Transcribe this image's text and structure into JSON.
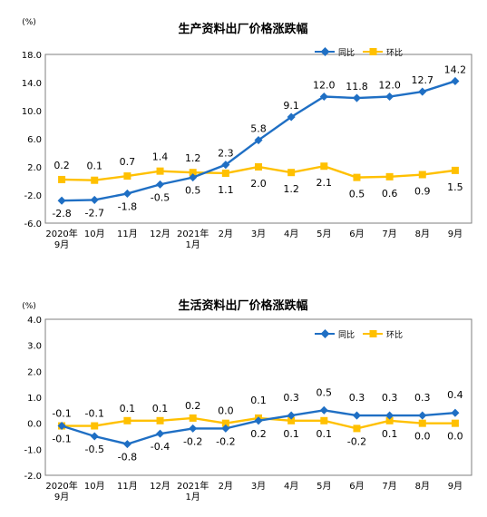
{
  "chart_data": [
    {
      "type": "line",
      "title": "生产资料出厂价格涨跌幅",
      "ylabel": "(%)",
      "categories": [
        "2020年\n9月",
        "10月",
        "11月",
        "12月",
        "2021年\n1月",
        "2月",
        "3月",
        "4月",
        "5月",
        "6月",
        "7月",
        "8月",
        "9月"
      ],
      "ylim": [
        -6.0,
        18.0
      ],
      "yticks": [
        "18.0",
        "14.0",
        "10.0",
        "6.0",
        "2.0",
        "-2.0",
        "-6.0"
      ],
      "ytick_values": [
        18,
        14,
        10,
        6,
        2,
        -2,
        -6
      ],
      "legend_position": "top-right",
      "grid": false,
      "series": [
        {
          "name": "同比",
          "color": "#1f6fc4",
          "values": [
            -2.8,
            -2.7,
            -1.8,
            -0.5,
            0.5,
            2.3,
            5.8,
            9.1,
            12.0,
            11.8,
            12.0,
            12.7,
            14.2
          ],
          "labels": [
            "-2.8",
            "-2.7",
            "-1.8",
            "-0.5",
            "0.5",
            "2.3",
            "5.8",
            "9.1",
            "12.0",
            "11.8",
            "12.0",
            "12.7",
            "14.2"
          ]
        },
        {
          "name": "环比",
          "color": "#ffc000",
          "values": [
            0.2,
            0.1,
            0.7,
            1.4,
            1.2,
            1.1,
            2.0,
            1.2,
            2.1,
            0.5,
            0.6,
            0.9,
            1.5
          ],
          "labels": [
            "0.2",
            "0.1",
            "0.7",
            "1.4",
            "1.2",
            "1.1",
            "2.0",
            "1.2",
            "2.1",
            "0.5",
            "0.6",
            "0.9",
            "1.5"
          ]
        }
      ]
    },
    {
      "type": "line",
      "title": "生活资料出厂价格涨跌幅",
      "ylabel": "(%)",
      "categories": [
        "2020年\n9月",
        "10月",
        "11月",
        "12月",
        "2021年\n1月",
        "2月",
        "3月",
        "4月",
        "5月",
        "6月",
        "7月",
        "8月",
        "9月"
      ],
      "ylim": [
        -2.0,
        4.0
      ],
      "yticks": [
        "4.0",
        "3.0",
        "2.0",
        "1.0",
        "0.0",
        "-1.0",
        "-2.0"
      ],
      "ytick_values": [
        4,
        3,
        2,
        1,
        0,
        -1,
        -2
      ],
      "legend_position": "top-right",
      "grid": false,
      "series": [
        {
          "name": "同比",
          "color": "#1f6fc4",
          "values": [
            -0.1,
            -0.5,
            -0.8,
            -0.4,
            -0.2,
            -0.2,
            0.1,
            0.3,
            0.5,
            0.3,
            0.3,
            0.3,
            0.4
          ],
          "labels": [
            "-0.1",
            "-0.5",
            "-0.8",
            "-0.4",
            "-0.2",
            "-0.2",
            "0.1",
            "0.3",
            "0.5",
            "0.3",
            "0.3",
            "0.3",
            "0.4"
          ]
        },
        {
          "name": "环比",
          "color": "#ffc000",
          "values": [
            -0.1,
            -0.1,
            0.1,
            0.1,
            0.2,
            0.0,
            0.2,
            0.1,
            0.1,
            -0.2,
            0.1,
            0.0,
            0.0
          ],
          "labels": [
            "-0.1",
            "-0.1",
            "0.1",
            "0.1",
            "0.2",
            "0.0",
            "0.2",
            "0.1",
            "0.1",
            "-0.2",
            "0.1",
            "0.0",
            "0.0"
          ]
        }
      ]
    }
  ]
}
